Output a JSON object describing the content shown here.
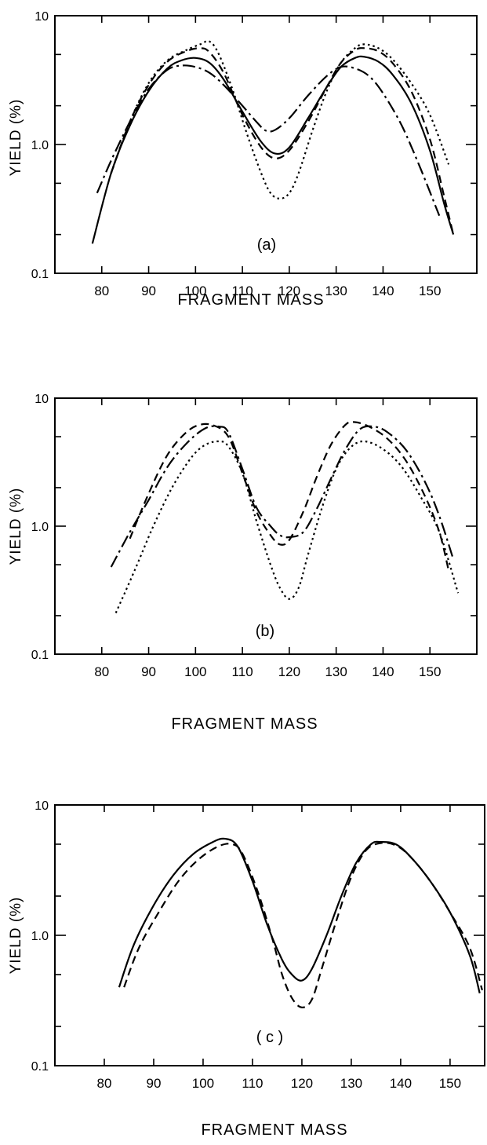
{
  "chart_data": [
    {
      "type": "line",
      "panel_label": "(a)",
      "xlabel": "FRAGMENT MASS",
      "ylabel": "YIELD (%)",
      "xlim": [
        70,
        160
      ],
      "ylim": [
        0.1,
        10
      ],
      "yscale": "log",
      "x_ticks": [
        80,
        90,
        100,
        110,
        120,
        130,
        140,
        150
      ],
      "x_tick_labels": [
        "80",
        "90",
        "100",
        "110",
        "120",
        "130",
        "140",
        "150"
      ],
      "y_ticks": [
        0.1,
        1.0,
        10
      ],
      "y_tick_labels": [
        "0.1",
        "1.0",
        "10"
      ],
      "grid": false,
      "series": [
        {
          "style": "solid",
          "points": [
            [
              78,
              0.17
            ],
            [
              82,
              0.6
            ],
            [
              86,
              1.4
            ],
            [
              90,
              2.6
            ],
            [
              94,
              3.9
            ],
            [
              97,
              4.5
            ],
            [
              100,
              4.7
            ],
            [
              103,
              4.3
            ],
            [
              106,
              3.2
            ],
            [
              110,
              1.8
            ],
            [
              114,
              1.05
            ],
            [
              117,
              0.85
            ],
            [
              120,
              0.95
            ],
            [
              124,
              1.6
            ],
            [
              128,
              2.8
            ],
            [
              131,
              4.0
            ],
            [
              134,
              4.7
            ],
            [
              136,
              4.8
            ],
            [
              139,
              4.4
            ],
            [
              142,
              3.5
            ],
            [
              146,
              2.1
            ],
            [
              150,
              0.9
            ],
            [
              153,
              0.35
            ],
            [
              155,
              0.2
            ]
          ]
        },
        {
          "style": "dashed",
          "points": [
            [
              82,
              0.6
            ],
            [
              86,
              1.5
            ],
            [
              90,
              2.9
            ],
            [
              94,
              4.4
            ],
            [
              98,
              5.3
            ],
            [
              101,
              5.6
            ],
            [
              103,
              5.2
            ],
            [
              106,
              3.6
            ],
            [
              110,
              1.7
            ],
            [
              114,
              0.95
            ],
            [
              117,
              0.78
            ],
            [
              120,
              0.9
            ],
            [
              124,
              1.5
            ],
            [
              128,
              2.8
            ],
            [
              131,
              4.3
            ],
            [
              134,
              5.4
            ],
            [
              136,
              5.6
            ],
            [
              139,
              5.3
            ],
            [
              142,
              4.3
            ],
            [
              146,
              2.6
            ],
            [
              150,
              1.1
            ],
            [
              153,
              0.4
            ],
            [
              155,
              0.2
            ]
          ]
        },
        {
          "style": "dotted",
          "points": [
            [
              82,
              0.6
            ],
            [
              86,
              1.5
            ],
            [
              90,
              3.0
            ],
            [
              94,
              4.5
            ],
            [
              98,
              5.4
            ],
            [
              101,
              6.0
            ],
            [
              103,
              6.3
            ],
            [
              105,
              5.0
            ],
            [
              108,
              2.6
            ],
            [
              111,
              1.2
            ],
            [
              114,
              0.6
            ],
            [
              116,
              0.42
            ],
            [
              118,
              0.38
            ],
            [
              120,
              0.42
            ],
            [
              122,
              0.6
            ],
            [
              125,
              1.3
            ],
            [
              128,
              2.6
            ],
            [
              131,
              4.3
            ],
            [
              134,
              5.6
            ],
            [
              136,
              6.0
            ],
            [
              139,
              5.6
            ],
            [
              142,
              4.6
            ],
            [
              146,
              3.0
            ],
            [
              150,
              1.7
            ],
            [
              154,
              0.7
            ]
          ]
        },
        {
          "style": "dashdot",
          "points": [
            [
              79,
              0.42
            ],
            [
              82,
              0.75
            ],
            [
              86,
              1.5
            ],
            [
              90,
              2.7
            ],
            [
              94,
              3.8
            ],
            [
              97,
              4.1
            ],
            [
              100,
              4.0
            ],
            [
              103,
              3.6
            ],
            [
              106,
              2.9
            ],
            [
              110,
              2.0
            ],
            [
              113,
              1.5
            ],
            [
              115,
              1.28
            ],
            [
              117,
              1.3
            ],
            [
              120,
              1.6
            ],
            [
              124,
              2.4
            ],
            [
              128,
              3.4
            ],
            [
              131,
              4.0
            ],
            [
              134,
              3.9
            ],
            [
              137,
              3.4
            ],
            [
              140,
              2.5
            ],
            [
              144,
              1.4
            ],
            [
              148,
              0.65
            ],
            [
              152,
              0.28
            ]
          ]
        }
      ]
    },
    {
      "type": "line",
      "panel_label": "(b)",
      "xlabel": "FRAGMENT MASS",
      "ylabel": "YIELD (%)",
      "xlim": [
        70,
        160
      ],
      "ylim": [
        0.1,
        10
      ],
      "yscale": "log",
      "x_ticks": [
        80,
        90,
        100,
        110,
        120,
        130,
        140,
        150
      ],
      "x_tick_labels": [
        "80",
        "90",
        "100",
        "110",
        "120",
        "130",
        "140",
        "150"
      ],
      "y_ticks": [
        0.1,
        1.0,
        10
      ],
      "y_tick_labels": [
        "0.1",
        "1.0",
        "10"
      ],
      "grid": false,
      "series": [
        {
          "style": "dashdot",
          "points": [
            [
              82,
              0.48
            ],
            [
              86,
              0.9
            ],
            [
              90,
              1.6
            ],
            [
              94,
              2.9
            ],
            [
              98,
              4.4
            ],
            [
              102,
              5.8
            ],
            [
              105,
              6.0
            ],
            [
              107,
              5.4
            ],
            [
              110,
              2.8
            ],
            [
              113,
              1.4
            ],
            [
              116,
              1.0
            ],
            [
              118,
              0.85
            ],
            [
              120,
              0.82
            ],
            [
              123,
              0.9
            ],
            [
              126,
              1.4
            ],
            [
              129,
              2.4
            ],
            [
              132,
              4.0
            ],
            [
              135,
              5.7
            ],
            [
              138,
              6.0
            ],
            [
              141,
              5.4
            ],
            [
              145,
              3.9
            ],
            [
              149,
              2.2
            ],
            [
              152,
              1.2
            ],
            [
              155,
              0.55
            ]
          ]
        },
        {
          "style": "dashed",
          "points": [
            [
              86,
              0.8
            ],
            [
              90,
              1.8
            ],
            [
              94,
              3.6
            ],
            [
              98,
              5.4
            ],
            [
              101,
              6.2
            ],
            [
              104,
              6.1
            ],
            [
              107,
              5.0
            ],
            [
              110,
              2.6
            ],
            [
              113,
              1.3
            ],
            [
              116,
              0.85
            ],
            [
              118,
              0.72
            ],
            [
              120,
              0.78
            ],
            [
              123,
              1.3
            ],
            [
              126,
              2.5
            ],
            [
              129,
              4.4
            ],
            [
              132,
              6.2
            ],
            [
              134,
              6.5
            ],
            [
              137,
              6.0
            ],
            [
              141,
              4.8
            ],
            [
              145,
              3.2
            ],
            [
              149,
              1.7
            ],
            [
              152,
              0.9
            ],
            [
              154,
              0.45
            ]
          ]
        },
        {
          "style": "dotted",
          "points": [
            [
              83,
              0.21
            ],
            [
              87,
              0.45
            ],
            [
              91,
              1.0
            ],
            [
              95,
              2.0
            ],
            [
              99,
              3.4
            ],
            [
              102,
              4.3
            ],
            [
              105,
              4.6
            ],
            [
              107,
              4.2
            ],
            [
              110,
              2.6
            ],
            [
              113,
              1.1
            ],
            [
              116,
              0.5
            ],
            [
              118,
              0.33
            ],
            [
              120,
              0.27
            ],
            [
              122,
              0.33
            ],
            [
              124,
              0.6
            ],
            [
              127,
              1.4
            ],
            [
              130,
              2.8
            ],
            [
              133,
              4.1
            ],
            [
              136,
              4.6
            ],
            [
              140,
              4.0
            ],
            [
              144,
              2.9
            ],
            [
              148,
              1.7
            ],
            [
              152,
              0.9
            ],
            [
              156,
              0.3
            ]
          ]
        }
      ]
    },
    {
      "type": "line",
      "panel_label": "( c )",
      "xlabel": "FRAGMENT MASS",
      "ylabel": "YIELD (%)",
      "xlim": [
        70,
        157
      ],
      "ylim": [
        0.1,
        10
      ],
      "yscale": "log",
      "x_ticks": [
        80,
        90,
        100,
        110,
        120,
        130,
        140,
        150
      ],
      "x_tick_labels": [
        "80",
        "90",
        "100",
        "110",
        "120",
        "130",
        "140",
        "150"
      ],
      "y_ticks": [
        0.1,
        1.0,
        10
      ],
      "y_tick_labels": [
        "0.1",
        "1.0",
        "10"
      ],
      "grid": false,
      "series": [
        {
          "style": "solid",
          "points": [
            [
              83,
              0.4
            ],
            [
              86,
              0.85
            ],
            [
              90,
              1.7
            ],
            [
              94,
              2.9
            ],
            [
              98,
              4.2
            ],
            [
              102,
              5.2
            ],
            [
              104.5,
              5.5
            ],
            [
              107,
              4.8
            ],
            [
              110,
              2.6
            ],
            [
              113,
              1.2
            ],
            [
              116,
              0.65
            ],
            [
              118,
              0.5
            ],
            [
              120,
              0.45
            ],
            [
              122,
              0.55
            ],
            [
              125,
              1.0
            ],
            [
              128,
              2.0
            ],
            [
              131,
              3.6
            ],
            [
              134,
              5.0
            ],
            [
              136,
              5.2
            ],
            [
              139,
              5.0
            ],
            [
              142,
              4.0
            ],
            [
              146,
              2.6
            ],
            [
              150,
              1.5
            ],
            [
              154,
              0.7
            ],
            [
              156,
              0.36
            ]
          ]
        },
        {
          "style": "dashed",
          "points": [
            [
              84,
              0.4
            ],
            [
              87,
              0.8
            ],
            [
              91,
              1.5
            ],
            [
              95,
              2.6
            ],
            [
              99,
              3.8
            ],
            [
              103,
              4.8
            ],
            [
              106,
              5.0
            ],
            [
              108,
              4.2
            ],
            [
              111,
              2.2
            ],
            [
              114,
              0.95
            ],
            [
              116,
              0.5
            ],
            [
              118,
              0.33
            ],
            [
              120,
              0.28
            ],
            [
              122,
              0.32
            ],
            [
              124,
              0.55
            ],
            [
              127,
              1.3
            ],
            [
              130,
              2.8
            ],
            [
              133,
              4.5
            ],
            [
              136,
              5.1
            ],
            [
              139,
              4.9
            ],
            [
              142,
              4.0
            ],
            [
              146,
              2.6
            ],
            [
              150,
              1.5
            ],
            [
              154,
              0.8
            ],
            [
              156.5,
              0.38
            ]
          ]
        }
      ]
    }
  ]
}
